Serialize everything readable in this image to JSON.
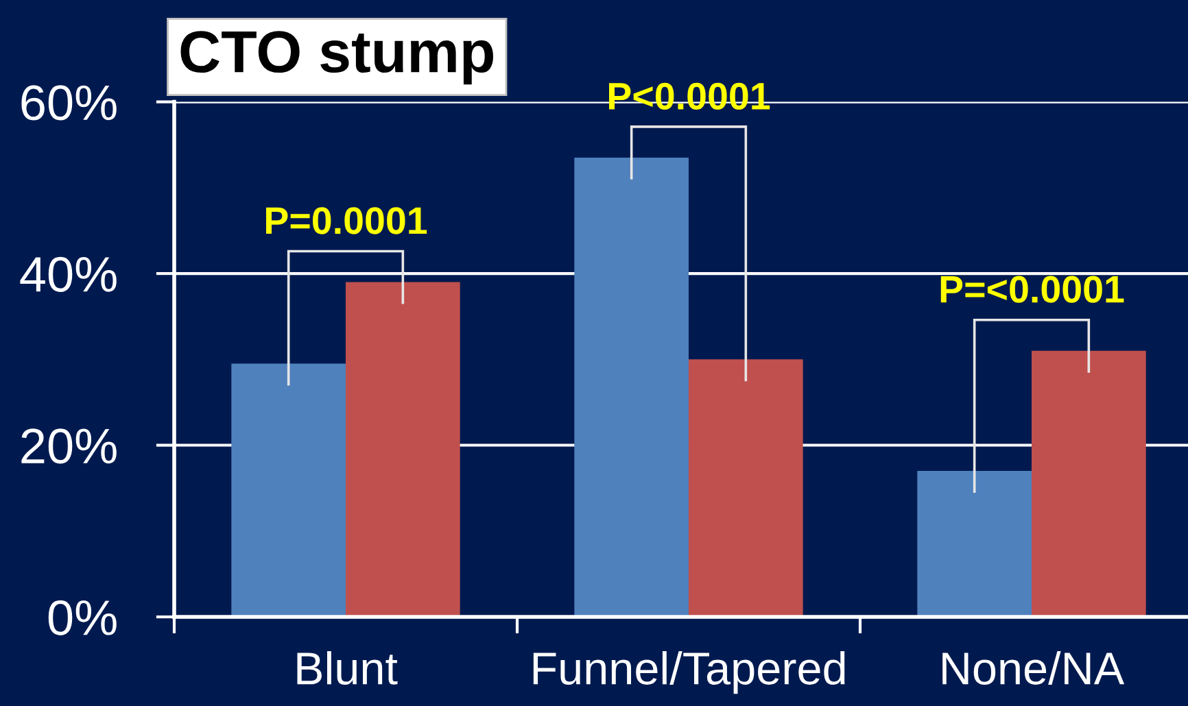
{
  "chart_data": {
    "type": "bar",
    "title": "CTO stump",
    "categories": [
      "Blunt",
      "Funnel/Tapered",
      "None/NA"
    ],
    "series": [
      {
        "color": "#4f81bd",
        "values": [
          29.5,
          53.5,
          17
        ]
      },
      {
        "color": "#c0504d",
        "values": [
          39,
          30,
          31
        ]
      }
    ],
    "ylim": [
      0,
      60
    ],
    "yticks": [
      {
        "value": 0,
        "label": "0%"
      },
      {
        "value": 20,
        "label": "20%"
      },
      {
        "value": 40,
        "label": "40%"
      },
      {
        "value": 60,
        "label": "60%"
      }
    ],
    "grid": "y",
    "annotations": [
      "P=0.0001",
      "P<0.0001",
      "P=<0.0001"
    ]
  }
}
